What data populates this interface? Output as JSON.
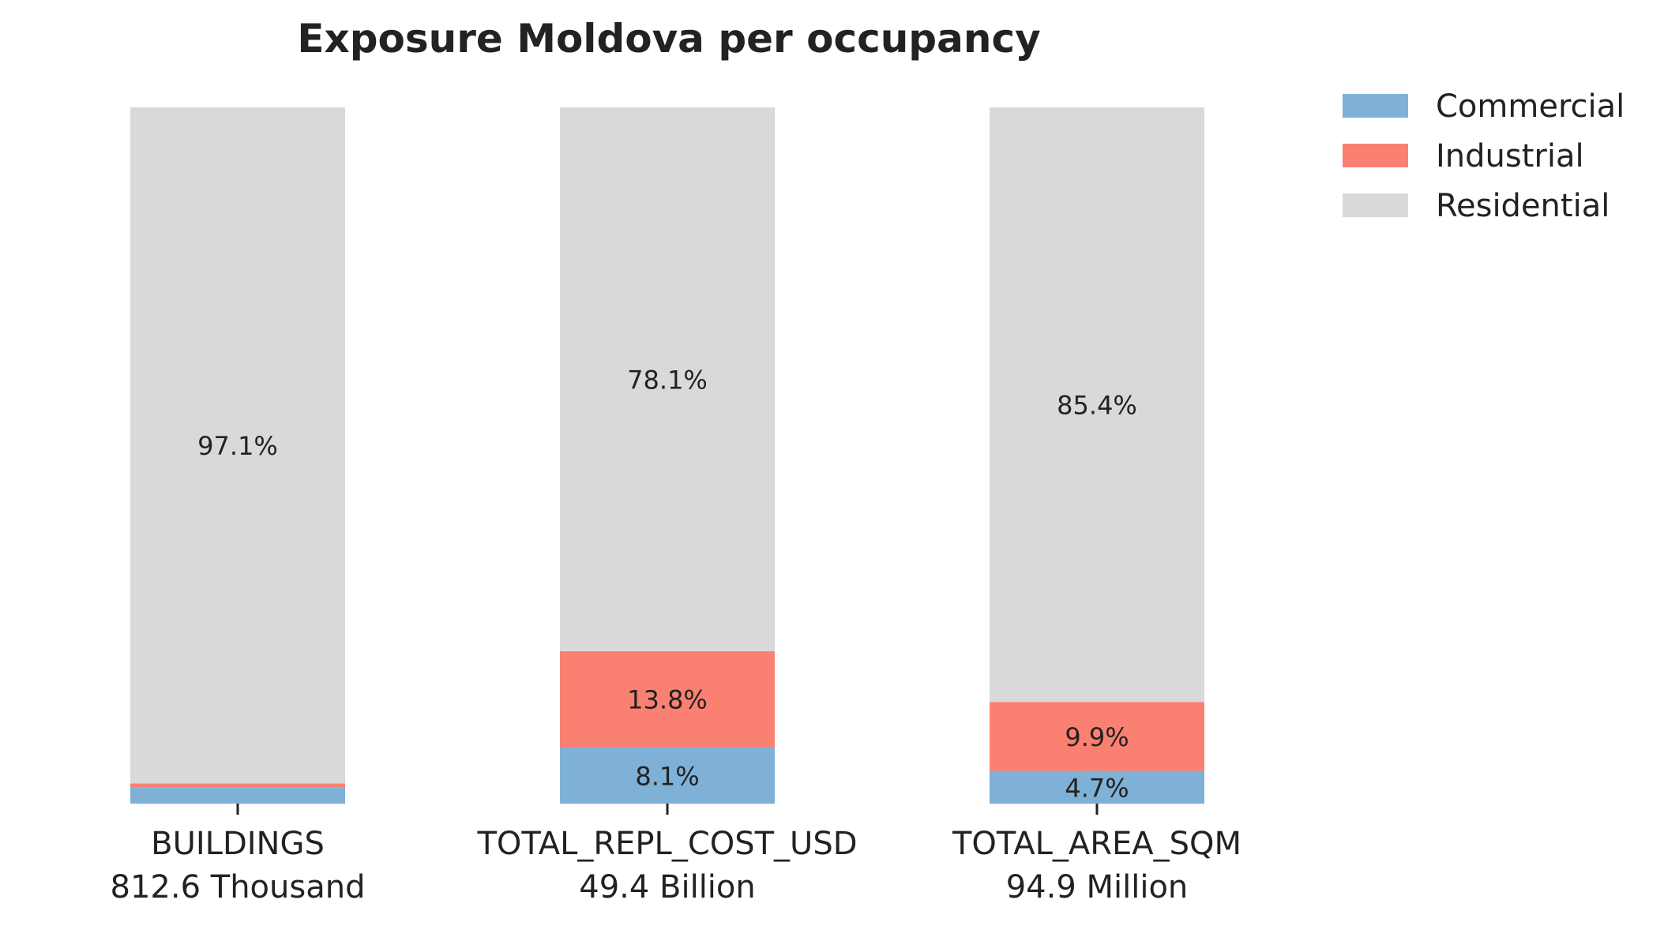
{
  "chart_data": {
    "type": "bar",
    "stacked": true,
    "normalized": true,
    "title": "Exposure Moldova per occupancy",
    "categories": [
      "BUILDINGS",
      "TOTAL_REPL_COST_USD",
      "TOTAL_AREA_SQM"
    ],
    "category_totals": [
      "812.6 Thousand",
      "49.4 Billion",
      "94.9 Million"
    ],
    "ylim": [
      0,
      100
    ],
    "grid": false,
    "legend_position": "top-right",
    "series": [
      {
        "name": "Commercial",
        "color": "#7fb1d6",
        "values": [
          2.3,
          8.1,
          4.7
        ],
        "labels": [
          "",
          "8.1%",
          "4.7%"
        ]
      },
      {
        "name": "Industrial",
        "color": "#fa8072",
        "values": [
          0.6,
          13.8,
          9.9
        ],
        "labels": [
          "",
          "13.8%",
          "9.9%"
        ]
      },
      {
        "name": "Residential",
        "color": "#d9d9d9",
        "values": [
          97.1,
          78.1,
          85.4
        ],
        "labels": [
          "97.1%",
          "78.1%",
          "85.4%"
        ]
      }
    ]
  }
}
